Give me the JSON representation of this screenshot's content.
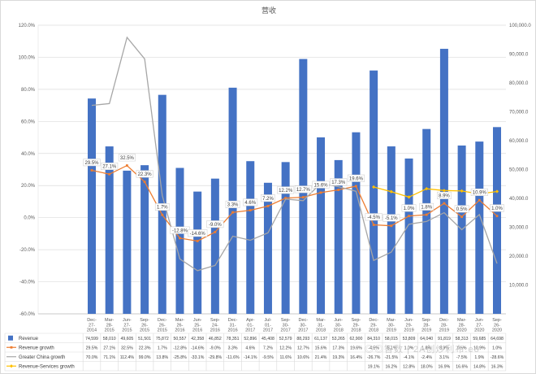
{
  "title": "营收",
  "watermark": "◎◎智数 | 2A创炒利布.eo",
  "chart_data": {
    "type": "combo-bar-line",
    "title": "营收",
    "grid": true,
    "legend_position": "table-left",
    "categories": [
      "Dec-27-2014",
      "Mar-28-2015",
      "Jun-27-2015",
      "Sep-26-2015",
      "Dec-26-2015",
      "Mar-26-2016",
      "Jun-25-2016",
      "Sep-24-2016",
      "Dec-31-2016",
      "Apr-01-2017",
      "Jul-01-2017",
      "Sep-30-2017",
      "Dec-30-2017",
      "Mar-31-2018",
      "Jun-30-2018",
      "Sep-29-2018",
      "Dec-29-2018",
      "Mar-30-2019",
      "Jun-29-2019",
      "Sep-28-2019",
      "Dec-28-2019",
      "Mar-28-2020",
      "Jun-27-2020",
      "Sep-26-2020"
    ],
    "bar_series": {
      "name": "Revenue",
      "color": "#4472C4",
      "axis": "right",
      "values": [
        74599,
        58010,
        49605,
        51501,
        75872,
        50557,
        42358,
        46852,
        78351,
        52896,
        45408,
        52579,
        88293,
        61137,
        53265,
        62900,
        84310,
        58015,
        53809,
        64040,
        91819,
        58313,
        59685,
        64698
      ]
    },
    "line_series": [
      {
        "name": "Revenue growth",
        "color": "#ED7D31",
        "marker": "square",
        "show_labels": true,
        "values": [
          29.5,
          27.1,
          32.5,
          22.3,
          1.7,
          -12.8,
          -14.6,
          -9.0,
          3.3,
          4.6,
          7.2,
          12.2,
          12.7,
          15.6,
          17.3,
          19.6,
          -4.5,
          -5.1,
          1.0,
          1.8,
          8.9,
          0.5,
          10.9,
          1.0
        ],
        "labels": [
          "29.5%",
          "27.1%",
          "32.5%",
          "22.3%",
          "1.7%",
          "-12.8%",
          "-14.6%",
          "-9.0%",
          "3.3%",
          "4.6%",
          "7.2%",
          "12.2%",
          "12.7%",
          "15.6%",
          "17.3%",
          "19.6%",
          "-4.5%",
          "-5.1%",
          "1.0%",
          "1.8%",
          "8.9%",
          "0.5%",
          "10.9%",
          "1.0%"
        ]
      },
      {
        "name": "Greater China growth",
        "color": "#A6A6A6",
        "marker": "none",
        "show_labels": false,
        "values": [
          70.0,
          71.1,
          112.4,
          99.0,
          13.8,
          -25.8,
          -33.1,
          -29.8,
          -11.6,
          -14.1,
          -9.5,
          11.6,
          10.6,
          21.4,
          19.3,
          16.4,
          -26.7,
          -21.5,
          -4.1,
          -2.4,
          3.1,
          -7.5,
          1.9,
          -28.6
        ]
      },
      {
        "name": "Revenue-Services growth",
        "color": "#FFC000",
        "marker": "diamond",
        "show_labels": false,
        "values": [
          null,
          null,
          null,
          null,
          null,
          null,
          null,
          null,
          null,
          null,
          null,
          null,
          null,
          null,
          null,
          null,
          19.1,
          16.2,
          12.8,
          18.0,
          16.9,
          16.6,
          14.8,
          16.3
        ]
      }
    ],
    "left_axis": {
      "min": -60,
      "max": 120,
      "ticks": [
        {
          "label": "120.0%",
          "value": 120
        },
        {
          "label": "100.0%",
          "value": 100
        },
        {
          "label": "80.0%",
          "value": 80
        },
        {
          "label": "60.0%",
          "value": 60
        },
        {
          "label": "40.0%",
          "value": 40
        },
        {
          "label": "20.0%",
          "value": 20
        },
        {
          "label": "0.0%",
          "value": 0
        },
        {
          "label": "-20.0%",
          "value": -20
        },
        {
          "label": "-40.0%",
          "value": -40
        },
        {
          "label": "-60.0%",
          "value": -60
        }
      ]
    },
    "right_axis": {
      "min": 0,
      "max": 100000,
      "ticks": [
        {
          "label": "100,000.0",
          "value": 100000
        },
        {
          "label": "90,000.0",
          "value": 90000
        },
        {
          "label": "80,000.0",
          "value": 80000
        },
        {
          "label": "70,000.0",
          "value": 70000
        },
        {
          "label": "60,000.0",
          "value": 60000
        },
        {
          "label": "50,000.0",
          "value": 50000
        },
        {
          "label": "40,000.0",
          "value": 40000
        },
        {
          "label": "30,000.0",
          "value": 30000
        },
        {
          "label": "20,000.0",
          "value": 20000
        },
        {
          "label": "10,000.0",
          "value": 10000
        }
      ]
    }
  },
  "table": {
    "rows": [
      {
        "label": "Revenue",
        "swatch": "bar",
        "marker": "none",
        "color": "#4472C4",
        "values": [
          "74,599",
          "58,010",
          "49,605",
          "51,501",
          "75,872",
          "50,557",
          "42,358",
          "46,852",
          "78,351",
          "52,896",
          "45,408",
          "52,579",
          "88,293",
          "61,137",
          "53,265",
          "62,900",
          "84,310",
          "58,015",
          "53,809",
          "64,040",
          "91,819",
          "58,313",
          "59,685",
          "64,698"
        ]
      },
      {
        "label": "Revenue growth",
        "swatch": "line",
        "marker": "square",
        "color": "#ED7D31",
        "values": [
          "29.5%",
          "27.1%",
          "32.5%",
          "22.3%",
          "1.7%",
          "-12.8%",
          "-14.6%",
          "-9.0%",
          "3.3%",
          "4.6%",
          "7.2%",
          "12.2%",
          "12.7%",
          "15.6%",
          "17.3%",
          "19.6%",
          "-4.5%",
          "-5.1%",
          "1.0%",
          "1.8%",
          "8.9%",
          "0.5%",
          "10.9%",
          "1.0%"
        ]
      },
      {
        "label": "Greater China growth",
        "swatch": "line",
        "marker": "none",
        "color": "#A6A6A6",
        "values": [
          "70.0%",
          "71.1%",
          "112.4%",
          "99.0%",
          "13.8%",
          "-25.8%",
          "-33.1%",
          "-29.8%",
          "-11.6%",
          "-14.1%",
          "-9.5%",
          "11.6%",
          "10.6%",
          "21.4%",
          "19.3%",
          "16.4%",
          "-26.7%",
          "-21.5%",
          "-4.1%",
          "-2.4%",
          "3.1%",
          "-7.5%",
          "1.9%",
          "-28.6%"
        ]
      },
      {
        "label": "Revenue-Services growth",
        "swatch": "line",
        "marker": "diamond",
        "color": "#FFC000",
        "values": [
          "",
          "",
          "",
          "",
          "",
          "",
          "",
          "",
          "",
          "",
          "",
          "",
          "",
          "",
          "",
          "",
          "19.1%",
          "16.2%",
          "12.8%",
          "18.0%",
          "16.9%",
          "16.6%",
          "14.8%",
          "16.3%"
        ]
      }
    ]
  }
}
